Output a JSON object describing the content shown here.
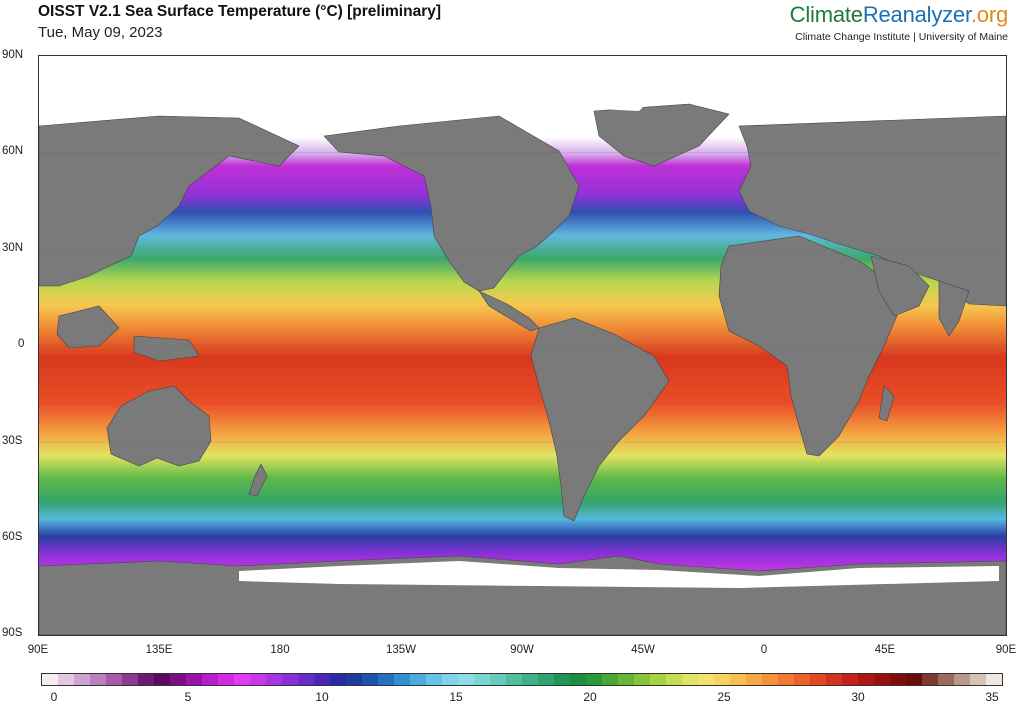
{
  "header": {
    "title": "OISST V2.1 Sea Surface Temperature (°C) [preliminary]",
    "date": "Tue, May 09, 2023",
    "brand_part1": "Climate",
    "brand_part2": "Reanalyzer",
    "brand_part3": ".org",
    "subtitle": "Climate Change Institute | University of Maine"
  },
  "map": {
    "land_color": "#7a7a7a",
    "ice_color": "#ffffff",
    "lat_labels": [
      "90N",
      "60N",
      "30N",
      "0",
      "30S",
      "60S",
      "90S"
    ],
    "lon_labels": [
      "90E",
      "135E",
      "180",
      "135W",
      "90W",
      "45W",
      "0",
      "45E",
      "90E"
    ]
  },
  "colorbar": {
    "min": 0,
    "max": 35,
    "tick_labels": [
      "0",
      "5",
      "10",
      "15",
      "20",
      "25",
      "30",
      "35"
    ],
    "colors": [
      "#f4eef4",
      "#e2c8e2",
      "#cfa3d0",
      "#bc7fbd",
      "#a65aa8",
      "#8e3a90",
      "#6e1a72",
      "#5a0a5e",
      "#7a0c86",
      "#9a12aa",
      "#b81ccc",
      "#d22ae2",
      "#e23cf0",
      "#c838ea",
      "#a834e2",
      "#8a30d8",
      "#6a2cc8",
      "#4a28b6",
      "#2a2aa4",
      "#1c3c9e",
      "#1c56ac",
      "#2472bc",
      "#3490cc",
      "#4aacdc",
      "#66c2e6",
      "#80d2ec",
      "#8edce6",
      "#7ad6d0",
      "#64ccb8",
      "#4ec09e",
      "#3cb286",
      "#2ea46e",
      "#209656",
      "#1c8e40",
      "#2a9a34",
      "#48a834",
      "#66b634",
      "#86c43a",
      "#a6d244",
      "#c6dc52",
      "#e0e462",
      "#f2e270",
      "#f8d260",
      "#f8be50",
      "#f6a842",
      "#f4923a",
      "#f07a32",
      "#ea622a",
      "#e04a22",
      "#d4341e",
      "#c4221a",
      "#ae1614",
      "#961010",
      "#7e0c0c",
      "#6a0c0a",
      "#7e3a2e",
      "#9a6a5a",
      "#b89a8a",
      "#d4c4b8",
      "#eee6e0"
    ]
  }
}
